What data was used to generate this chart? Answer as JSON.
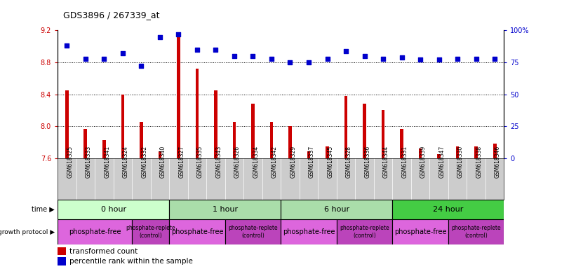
{
  "title": "GDS3896 / 267339_at",
  "samples": [
    "GSM618325",
    "GSM618333",
    "GSM618341",
    "GSM618324",
    "GSM618332",
    "GSM618340",
    "GSM618327",
    "GSM618335",
    "GSM618343",
    "GSM618326",
    "GSM618334",
    "GSM618342",
    "GSM618329",
    "GSM618337",
    "GSM618345",
    "GSM618328",
    "GSM618336",
    "GSM618344",
    "GSM618331",
    "GSM618339",
    "GSM618347",
    "GSM618330",
    "GSM618338",
    "GSM618346"
  ],
  "transformed_count": [
    8.45,
    7.97,
    7.83,
    8.4,
    8.05,
    7.69,
    9.13,
    8.72,
    8.45,
    8.05,
    8.28,
    8.05,
    8.0,
    7.69,
    7.75,
    8.38,
    8.28,
    8.2,
    7.97,
    7.72,
    7.65,
    7.75,
    7.75,
    7.78
  ],
  "percentile_rank": [
    88,
    78,
    78,
    82,
    72,
    95,
    97,
    85,
    85,
    80,
    80,
    78,
    75,
    75,
    78,
    84,
    80,
    78,
    79,
    77,
    77,
    78,
    78,
    78
  ],
  "ylim_left": [
    7.6,
    9.2
  ],
  "ylim_right": [
    0,
    100
  ],
  "yticks_left": [
    7.6,
    8.0,
    8.4,
    8.8,
    9.2
  ],
  "yticks_right": [
    0,
    25,
    50,
    75,
    100
  ],
  "bar_color": "#cc0000",
  "scatter_color": "#0000cc",
  "bar_bottom": 7.6,
  "hlines": [
    8.0,
    8.4,
    8.8
  ],
  "time_groups": [
    {
      "label": "0 hour",
      "start": 0,
      "end": 6,
      "color": "#ccffcc"
    },
    {
      "label": "1 hour",
      "start": 6,
      "end": 12,
      "color": "#aaddaa"
    },
    {
      "label": "6 hour",
      "start": 12,
      "end": 18,
      "color": "#aaddaa"
    },
    {
      "label": "24 hour",
      "start": 18,
      "end": 24,
      "color": "#44cc44"
    }
  ],
  "protocol_groups": [
    {
      "label": "phosphate-free",
      "start": 0,
      "end": 4,
      "color": "#dd66dd",
      "fontsize": 7
    },
    {
      "label": "phosphate-replete\n(control)",
      "start": 4,
      "end": 6,
      "color": "#bb44bb",
      "fontsize": 5.5
    },
    {
      "label": "phosphate-free",
      "start": 6,
      "end": 9,
      "color": "#dd66dd",
      "fontsize": 7
    },
    {
      "label": "phosphate-replete\n(control)",
      "start": 9,
      "end": 12,
      "color": "#bb44bb",
      "fontsize": 5.5
    },
    {
      "label": "phosphate-free",
      "start": 12,
      "end": 15,
      "color": "#dd66dd",
      "fontsize": 7
    },
    {
      "label": "phosphate-replete\n(control)",
      "start": 15,
      "end": 18,
      "color": "#bb44bb",
      "fontsize": 5.5
    },
    {
      "label": "phosphate-free",
      "start": 18,
      "end": 21,
      "color": "#dd66dd",
      "fontsize": 7
    },
    {
      "label": "phosphate-replete\n(control)",
      "start": 21,
      "end": 24,
      "color": "#bb44bb",
      "fontsize": 5.5
    }
  ],
  "legend_bar_label": "transformed count",
  "legend_scatter_label": "percentile rank within the sample",
  "time_label": "time ▶",
  "protocol_label": "growth protocol ▶",
  "xtick_bg_color": "#cccccc",
  "xtick_sep_color": "#aaaaaa"
}
